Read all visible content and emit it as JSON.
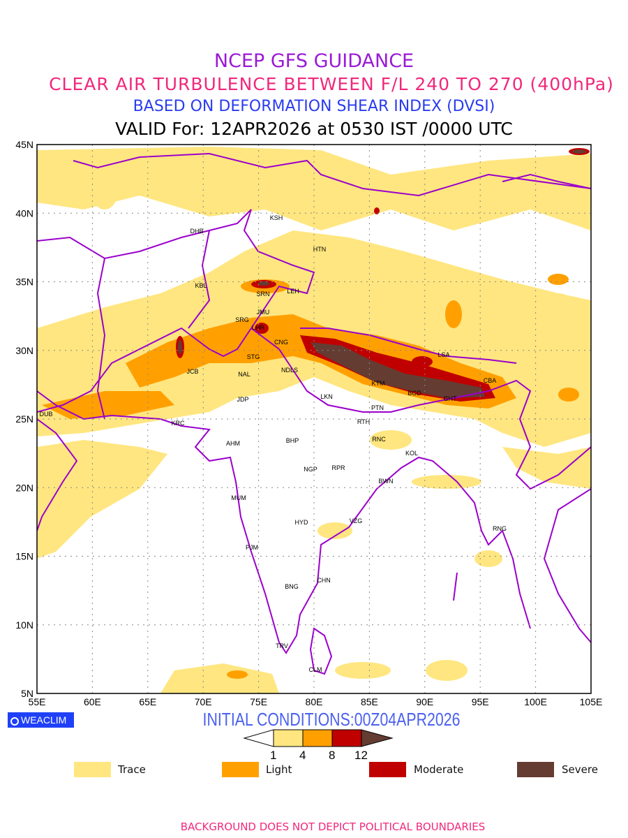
{
  "header": {
    "title": "NCEP GFS GUIDANCE",
    "subtitle": "CLEAR AIR TURBULENCE BETWEEN F/L 240 TO 270 (400hPa)",
    "method": "BASED ON DEFORMATION SHEAR INDEX (DVSI)",
    "valid": "VALID For: 12APR2026 at 0530 IST /0000 UTC"
  },
  "map": {
    "lon_ticks": [
      "55E",
      "60E",
      "65E",
      "70E",
      "75E",
      "80E",
      "85E",
      "90E",
      "95E",
      "100E",
      "105E"
    ],
    "lat_ticks": [
      "45N",
      "40N",
      "35N",
      "30N",
      "25N",
      "20N",
      "15N",
      "10N",
      "5N"
    ],
    "cities": [
      "KSH",
      "DHB",
      "HTN",
      "KBL",
      "SRN",
      "LEH",
      "JMU",
      "SRG",
      "LHR",
      "CNG",
      "STG",
      "LSA",
      "JCB",
      "NAL",
      "NDLS",
      "KTM",
      "CBA",
      "BGD",
      "GHT",
      "JDP",
      "LKN",
      "PTN",
      "DUB",
      "RTH",
      "KRC",
      "AHM",
      "BHP",
      "RNC",
      "KOL",
      "NGP",
      "RPR",
      "BWN",
      "MUM",
      "HYD",
      "VZG",
      "RNG",
      "PJM",
      "CHN",
      "BNG",
      "TRV",
      "CLM"
    ]
  },
  "footer": {
    "logo": "WEACLIM",
    "initial": "INITIAL CONDITIONS:00Z04APR2026",
    "colorbar_ticks": [
      "1",
      "4",
      "8",
      "12"
    ],
    "legend": [
      {
        "label": "Trace",
        "color": "#ffe680"
      },
      {
        "label": "Light",
        "color": "#ffa000"
      },
      {
        "label": "Moderate",
        "color": "#c00000"
      },
      {
        "label": "Severe",
        "color": "#643c32"
      }
    ],
    "disclaimer": "BACKGROUND DOES NOT DEPICT POLITICAL BOUNDARIES"
  }
}
